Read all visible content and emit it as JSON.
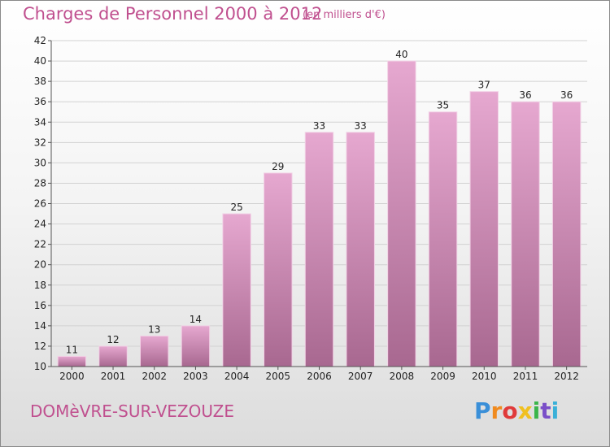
{
  "header": {
    "title": "Charges de Personnel 2000 à 2012",
    "subtitle": "(en milliers d'€)"
  },
  "footer": {
    "commune": "DOMèVRE-SUR-VEZOUZE",
    "logo_letters": [
      "P",
      "r",
      "o",
      "x",
      "i",
      "t",
      "i"
    ],
    "logo_colors": [
      "#3a8fd8",
      "#f08a1e",
      "#e03a3a",
      "#f0c020",
      "#3ab54a",
      "#7a4fc8",
      "#3ab0d8"
    ]
  },
  "colors": {
    "bar_top": "#e6a8d0",
    "bar_bottom": "#a86890",
    "text_accent": "#c0508f"
  },
  "chart_data": {
    "type": "bar",
    "title": "Charges de Personnel 2000 à 2012",
    "subtitle": "(en milliers d'€)",
    "categories": [
      "2000",
      "2001",
      "2002",
      "2003",
      "2004",
      "2005",
      "2006",
      "2007",
      "2008",
      "2009",
      "2010",
      "2011",
      "2012"
    ],
    "values": [
      11,
      12,
      13,
      14,
      25,
      29,
      33,
      33,
      40,
      35,
      37,
      36,
      36
    ],
    "ylim": [
      10,
      42
    ],
    "yticks": [
      10,
      12,
      14,
      16,
      18,
      20,
      22,
      24,
      26,
      28,
      30,
      32,
      34,
      36,
      38,
      40,
      42
    ],
    "grid": true,
    "legend": "none"
  }
}
